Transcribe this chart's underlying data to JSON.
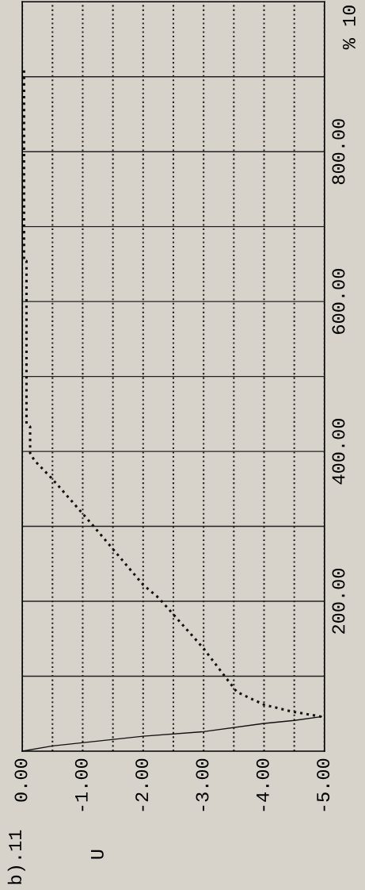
{
  "chart_data": {
    "type": "line",
    "title": "b).11",
    "annotations": [
      "% 10",
      "U"
    ],
    "xlim": [
      0,
      -5
    ],
    "ylim": [
      0,
      1000
    ],
    "yticks": [
      {
        "value": 100,
        "label": null
      },
      {
        "value": 200,
        "label": "200.00"
      },
      {
        "value": 300,
        "label": null
      },
      {
        "value": 400,
        "label": "400.00"
      },
      {
        "value": 500,
        "label": null
      },
      {
        "value": 600,
        "label": "600.00"
      },
      {
        "value": 700,
        "label": null
      },
      {
        "value": 800,
        "label": "800.00"
      },
      {
        "value": 900,
        "label": null
      }
    ],
    "xticks": [
      {
        "value": 0,
        "label": "0.00"
      },
      {
        "value": -0.5,
        "label": null
      },
      {
        "value": -1,
        "label": "-1.00"
      },
      {
        "value": -1.5,
        "label": null
      },
      {
        "value": -2,
        "label": "-2.00"
      },
      {
        "value": -2.5,
        "label": null
      },
      {
        "value": -3,
        "label": "-3.00"
      },
      {
        "value": -3.5,
        "label": null
      },
      {
        "value": -4,
        "label": "-4.00"
      },
      {
        "value": -4.5,
        "label": null
      },
      {
        "value": -5,
        "label": "-5.00"
      }
    ],
    "grid": true,
    "marker": "none",
    "series": [
      {
        "color": "#111111",
        "line_style": "solid",
        "x": [
          0,
          -0.5,
          -2.0,
          -3.0,
          -4.0,
          -4.5,
          -4.95
        ],
        "values": [
          0,
          7,
          20,
          26,
          37,
          41,
          46
        ]
      },
      {
        "color": "#111111",
        "line_style": "dotted",
        "x": [
          -4.95,
          -4.45,
          -4.0,
          -3.55,
          -3.35,
          -3.0,
          -2.45,
          -2.25,
          -2.0,
          -1.15,
          -0.5,
          -0.2,
          -0.13,
          -0.13,
          -0.07,
          -0.07,
          -0.03,
          -0.03
        ],
        "values": [
          46,
          53,
          62,
          79,
          100,
          137,
          187,
          205,
          222,
          303,
          363,
          388,
          398,
          433,
          437,
          654,
          654,
          912
        ]
      }
    ]
  }
}
